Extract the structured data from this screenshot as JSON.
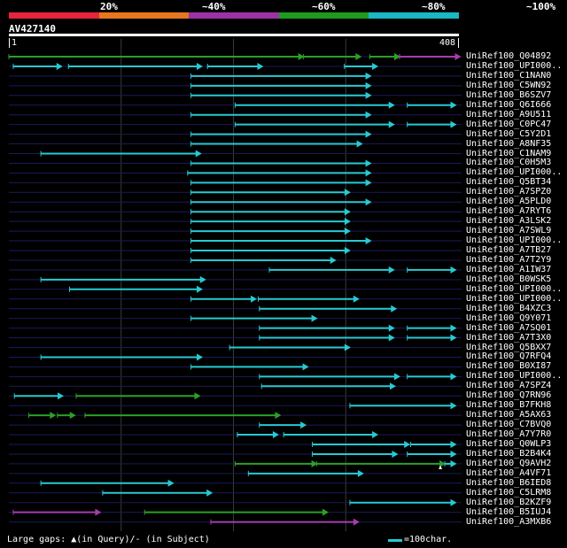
{
  "colors": {
    "scale": [
      "#e8243c",
      "#e6771e",
      "#9b33a6",
      "#1e9a1e",
      "#1ab7c4"
    ],
    "hit": {
      "cyan": "#28c9d4",
      "green": "#2aa02a",
      "purple": "#a63cb0"
    },
    "gridline": "#3a3a3a",
    "row_line": "#1a1a5a"
  },
  "scale": {
    "labels": [
      "20%",
      "~40%",
      "~60%",
      "~80%",
      "~100%"
    ]
  },
  "query": {
    "id": "AV427140",
    "start": "1",
    "end": "408",
    "length": 408
  },
  "hits": [
    {
      "label": "UniRef100_Q04892",
      "segs": [
        [
          1,
          268,
          "green"
        ],
        [
          268,
          320,
          "green"
        ],
        [
          328,
          355,
          "green"
        ],
        [
          355,
          355,
          "green"
        ],
        [
          355,
          410,
          "purple"
        ]
      ]
    },
    {
      "label": "UniRef100_UPI000..",
      "segs": [
        [
          5,
          49,
          "cyan"
        ],
        [
          55,
          176,
          "cyan"
        ],
        [
          181,
          231,
          "cyan"
        ],
        [
          305,
          335,
          "cyan"
        ]
      ]
    },
    {
      "label": "UniRef100_C1NAN0",
      "segs": [
        [
          166,
          329,
          "cyan"
        ]
      ]
    },
    {
      "label": "UniRef100_C5WN92",
      "segs": [
        [
          166,
          329,
          "cyan"
        ]
      ]
    },
    {
      "label": "UniRef100_B6SZV7",
      "segs": [
        [
          166,
          329,
          "cyan"
        ]
      ]
    },
    {
      "label": "UniRef100_Q6I666",
      "segs": [
        [
          206,
          350,
          "cyan"
        ],
        [
          362,
          406,
          "cyan"
        ]
      ]
    },
    {
      "label": "UniRef100_A9U511",
      "segs": [
        [
          166,
          329,
          "cyan"
        ]
      ]
    },
    {
      "label": "UniRef100_C0PC47",
      "segs": [
        [
          206,
          350,
          "cyan"
        ],
        [
          362,
          406,
          "cyan"
        ]
      ]
    },
    {
      "label": "UniRef100_C5Y2D1",
      "segs": [
        [
          166,
          329,
          "cyan"
        ]
      ]
    },
    {
      "label": "UniRef100_A8NF35",
      "segs": [
        [
          166,
          321,
          "cyan"
        ]
      ]
    },
    {
      "label": "UniRef100_C1NAM9",
      "segs": [
        [
          30,
          175,
          "cyan"
        ]
      ]
    },
    {
      "label": "UniRef100_C0H5M3",
      "segs": [
        [
          166,
          329,
          "cyan"
        ]
      ]
    },
    {
      "label": "UniRef100_UPI000..",
      "segs": [
        [
          163,
          329,
          "cyan"
        ]
      ]
    },
    {
      "label": "UniRef100_Q5BT34",
      "segs": [
        [
          166,
          329,
          "cyan"
        ]
      ]
    },
    {
      "label": "UniRef100_A7SPZ0",
      "segs": [
        [
          166,
          310,
          "cyan"
        ]
      ]
    },
    {
      "label": "UniRef100_A5PLD0",
      "segs": [
        [
          166,
          329,
          "cyan"
        ]
      ]
    },
    {
      "label": "UniRef100_A7RYT6",
      "segs": [
        [
          166,
          310,
          "cyan"
        ]
      ]
    },
    {
      "label": "UniRef100_A3LSK2",
      "segs": [
        [
          166,
          310,
          "cyan"
        ]
      ]
    },
    {
      "label": "UniRef100_A7SWL9",
      "segs": [
        [
          166,
          310,
          "cyan"
        ]
      ]
    },
    {
      "label": "UniRef100_UPI000..",
      "segs": [
        [
          166,
          329,
          "cyan"
        ]
      ]
    },
    {
      "label": "UniRef100_A7TB27",
      "segs": [
        [
          166,
          310,
          "cyan"
        ]
      ]
    },
    {
      "label": "UniRef100_A7T2Y9",
      "segs": [
        [
          166,
          297,
          "cyan"
        ]
      ]
    },
    {
      "label": "UniRef100_A1IW37",
      "segs": [
        [
          237,
          350,
          "cyan"
        ],
        [
          362,
          406,
          "cyan"
        ]
      ]
    },
    {
      "label": "UniRef100_B0WSK5",
      "segs": [
        [
          30,
          179,
          "cyan"
        ]
      ]
    },
    {
      "label": "UniRef100_UPI000..",
      "segs": [
        [
          56,
          176,
          "cyan"
        ]
      ]
    },
    {
      "label": "UniRef100_UPI000..",
      "segs": [
        [
          166,
          225,
          "cyan"
        ],
        [
          227,
          318,
          "cyan"
        ]
      ]
    },
    {
      "label": "UniRef100_B4XZC3",
      "segs": [
        [
          228,
          352,
          "cyan"
        ]
      ]
    },
    {
      "label": "UniRef100_Q9Y071",
      "segs": [
        [
          166,
          280,
          "cyan"
        ]
      ]
    },
    {
      "label": "UniRef100_A7SQ01",
      "segs": [
        [
          228,
          350,
          "cyan"
        ],
        [
          362,
          406,
          "cyan"
        ]
      ]
    },
    {
      "label": "UniRef100_A7T3X0",
      "segs": [
        [
          228,
          350,
          "cyan"
        ],
        [
          362,
          406,
          "cyan"
        ]
      ]
    },
    {
      "label": "UniRef100_Q5BXX7",
      "segs": [
        [
          201,
          310,
          "cyan"
        ]
      ]
    },
    {
      "label": "UniRef100_Q7RFQ4",
      "segs": [
        [
          30,
          176,
          "cyan"
        ]
      ]
    },
    {
      "label": "UniRef100_B0XI87",
      "segs": [
        [
          166,
          272,
          "cyan"
        ]
      ]
    },
    {
      "label": "UniRef100_UPI000..",
      "segs": [
        [
          228,
          355,
          "cyan"
        ],
        [
          362,
          406,
          "cyan"
        ]
      ]
    },
    {
      "label": "UniRef100_A7SPZ4",
      "segs": [
        [
          230,
          351,
          "cyan"
        ]
      ]
    },
    {
      "label": "UniRef100_Q7RN96",
      "segs": [
        [
          6,
          50,
          "cyan"
        ],
        [
          62,
          174,
          "green"
        ]
      ]
    },
    {
      "label": "UniRef100_B7FKH8",
      "segs": [
        [
          310,
          406,
          "cyan"
        ]
      ]
    },
    {
      "label": "UniRef100_A5AX63",
      "segs": [
        [
          19,
          43,
          "green"
        ],
        [
          45,
          61,
          "green"
        ],
        [
          70,
          247,
          "green"
        ]
      ]
    },
    {
      "label": "UniRef100_C7BVQ0",
      "segs": [
        [
          228,
          270,
          "cyan"
        ]
      ]
    },
    {
      "label": "UniRef100_A7Y7R0",
      "segs": [
        [
          208,
          245,
          "cyan"
        ],
        [
          250,
          335,
          "cyan"
        ]
      ]
    },
    {
      "label": "UniRef100_Q0WLP3",
      "segs": [
        [
          276,
          364,
          "cyan"
        ],
        [
          365,
          406,
          "cyan"
        ]
      ]
    },
    {
      "label": "UniRef100_B2B4K4",
      "segs": [
        [
          276,
          353,
          "cyan"
        ],
        [
          362,
          406,
          "cyan"
        ]
      ]
    },
    {
      "label": "UniRef100_Q9AVH2",
      "segs": [
        [
          206,
          280,
          "green"
        ],
        [
          280,
          396,
          "green"
        ],
        [
          396,
          406,
          "cyan"
        ]
      ]
    },
    {
      "label": "UniRef100_A4VF71",
      "segs": [
        [
          218,
          322,
          "cyan"
        ]
      ]
    },
    {
      "label": "UniRef100_B6IED8",
      "segs": [
        [
          30,
          150,
          "cyan"
        ]
      ]
    },
    {
      "label": "UniRef100_C5LRM8",
      "segs": [
        [
          86,
          185,
          "cyan"
        ]
      ]
    },
    {
      "label": "UniRef100_B2KZF9",
      "segs": [
        [
          310,
          406,
          "cyan"
        ]
      ]
    },
    {
      "label": "UniRef100_B5IUJ4",
      "segs": [
        [
          5,
          84,
          "purple"
        ],
        [
          124,
          290,
          "green"
        ]
      ]
    },
    {
      "label": "UniRef100_A3MXB6",
      "segs": [
        [
          184,
          318,
          "purple"
        ]
      ]
    }
  ],
  "legend": {
    "text": "Large gaps: ▲(in Query)/- (in Subject)",
    "unit": "=100char."
  }
}
